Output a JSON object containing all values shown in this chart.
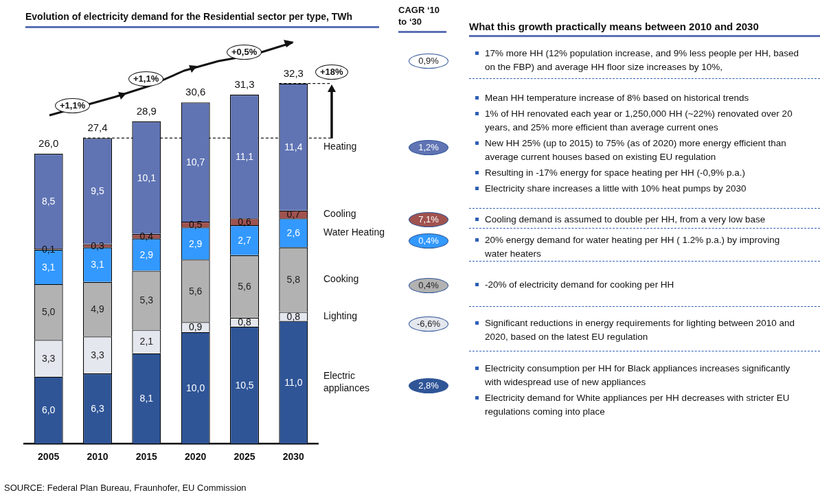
{
  "chart_data": [
    {
      "type": "bar",
      "title": "Evolution of electricity demand for the Residential sector per type, TWh",
      "categories": [
        "2005",
        "2010",
        "2015",
        "2020",
        "2025",
        "2030"
      ],
      "stacked": true,
      "series": [
        {
          "name": "Electric appliances",
          "color": "#2f5597",
          "values": [
            6.0,
            6.3,
            8.1,
            10.0,
            10.5,
            11.0
          ],
          "value_labels": [
            "6,0",
            "6,3",
            "8,1",
            "10,0",
            "10,5",
            "11,0"
          ]
        },
        {
          "name": "Lighting",
          "color": "#e4e7ee",
          "values": [
            3.3,
            3.3,
            2.1,
            0.9,
            0.8,
            0.8
          ],
          "value_labels": [
            "3,3",
            "3,3",
            "2,1",
            "0,9",
            "0,8",
            "0,8"
          ]
        },
        {
          "name": "Cooking",
          "color": "#b2b2b2",
          "values": [
            5.0,
            4.9,
            5.3,
            5.6,
            5.6,
            5.8
          ],
          "value_labels": [
            "5,0",
            "4,9",
            "5,3",
            "5,6",
            "5,6",
            "5,8"
          ]
        },
        {
          "name": "Water Heating",
          "color": "#3399ff",
          "values": [
            3.1,
            3.1,
            2.9,
            2.9,
            2.7,
            2.6
          ],
          "value_labels": [
            "3,1",
            "3,1",
            "2,9",
            "2,9",
            "2,7",
            "2,6"
          ]
        },
        {
          "name": "Cooling",
          "color": "#a0524f",
          "values": [
            0.1,
            0.3,
            0.4,
            0.5,
            0.6,
            0.7
          ],
          "value_labels": [
            "0,1",
            "0,3",
            "0,4",
            "0,5",
            "0,6",
            "0,7"
          ]
        },
        {
          "name": "Heating",
          "color": "#6074b4",
          "values": [
            8.5,
            9.5,
            10.1,
            10.7,
            11.1,
            11.4
          ],
          "value_labels": [
            "8,5",
            "9,5",
            "10,1",
            "10,7",
            "11,1",
            "11,4"
          ]
        }
      ],
      "totals": [
        "26,0",
        "27,4",
        "28,9",
        "30,6",
        "31,3",
        "32,3"
      ],
      "ref_lines": [
        {
          "axis": "y",
          "value": 27.4,
          "line_style": "dashed"
        },
        {
          "axis": "y",
          "value": 32.3,
          "line_style": "dashed"
        }
      ],
      "legend": "right",
      "annotations": [
        "+1,1%",
        "+1,1%",
        "+0,5%",
        "+18%",
        "SOURCE: Federal Plan Bureau, Fraunhofer, EU Commission"
      ]
    },
    {
      "type": "other",
      "title": "What this growth practically means between 2010 and 2030",
      "subtitle": "CAGR ‘10 to ‘30",
      "annotations": [
        "0,9%",
        "17% more HH (12% population increase, and 9% less people per HH, based on the FBP) and average HH floor size increases by 10%,",
        "1,2%",
        "Mean HH temperature increase of 8% based on historical trends",
        "1% of HH renovated each year or 1,250,000 HH (~22%) renovated over 20 years, and 25% more efficient than average current ones",
        "New HH 25% (up to 2015) to 75% (as of 2020) more energy efficient than average current houses based on existing EU regulation",
        "Resulting in -17% energy for space heating per HH (-0,9% p.a.)",
        "Electricity share increases a little with 10% heat pumps by 2030",
        "7,1%",
        "Cooling demand is assumed to double per HH, from a very low base",
        "0,4%",
        "20% energy demand for water heating per HH ( 1.2% p.a.) by improving water heaters",
        "0,4%",
        "-20% of electricity demand for cooking per HH",
        "-6,6%",
        "Significant reductions in energy requirements for lighting between 2010 and 2020, based on the latest EU regulation",
        "2,8%",
        "Electricity consumption per HH for Black appliances increases significantly with widespread use of new appliances",
        "Electricity demand for White appliances per HH decreases with stricter EU regulations coming into place"
      ]
    }
  ]
}
